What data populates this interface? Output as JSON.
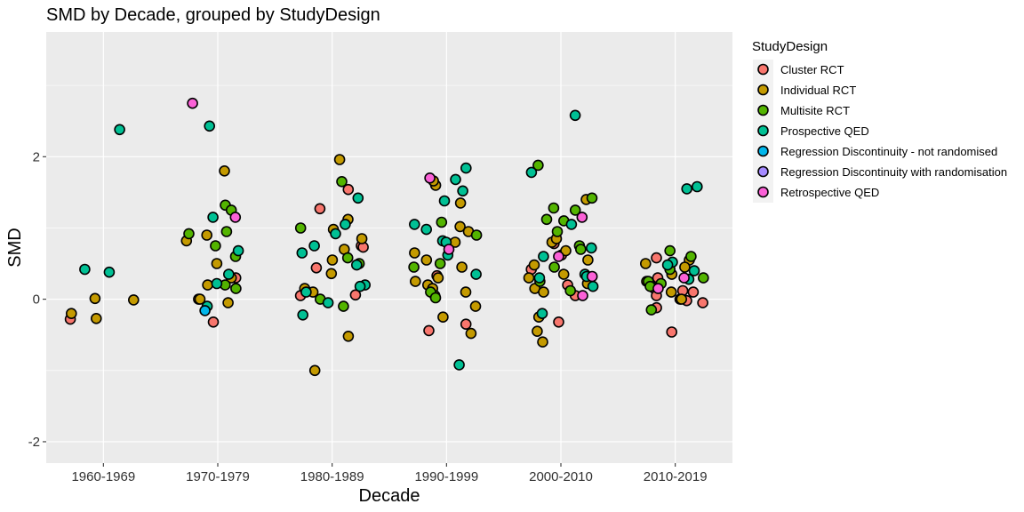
{
  "chart_data": {
    "type": "scatter",
    "title": "SMD by Decade, grouped by StudyDesign",
    "xlabel": "Decade",
    "ylabel": "SMD",
    "categories": [
      "1960-1969",
      "1970-1979",
      "1980-1989",
      "1990-1999",
      "2000-2010",
      "2010-2019"
    ],
    "y_ticks": [
      -2,
      0,
      2
    ],
    "y_tick_labels": [
      "-2",
      "0",
      "2"
    ],
    "ylim": [
      -2.3,
      3.75
    ],
    "grid": true,
    "legend": {
      "title": "StudyDesign",
      "position": "right"
    },
    "series": [
      {
        "name": "Cluster RCT",
        "color": "#F8766D",
        "points": [
          {
            "x": "1960-1969",
            "y": -0.28
          },
          {
            "x": "1970-1979",
            "y": 0.3
          },
          {
            "x": "1970-1979",
            "y": -0.32
          },
          {
            "x": "1970-1979",
            "y": 0.0
          },
          {
            "x": "1980-1989",
            "y": 1.54
          },
          {
            "x": "1980-1989",
            "y": 1.27
          },
          {
            "x": "1980-1989",
            "y": 0.75
          },
          {
            "x": "1980-1989",
            "y": 0.44
          },
          {
            "x": "1980-1989",
            "y": 0.73
          },
          {
            "x": "1980-1989",
            "y": 0.05
          },
          {
            "x": "1980-1989",
            "y": 0.06
          },
          {
            "x": "1990-1999",
            "y": -0.35
          },
          {
            "x": "1990-1999",
            "y": -0.44
          },
          {
            "x": "1990-1999",
            "y": 0.33
          },
          {
            "x": "2000-2010",
            "y": 0.42
          },
          {
            "x": "2000-2010",
            "y": 0.05
          },
          {
            "x": "2000-2010",
            "y": -0.32
          },
          {
            "x": "2000-2010",
            "y": 0.62
          },
          {
            "x": "2000-2010",
            "y": 0.2
          },
          {
            "x": "2000-2010",
            "y": 0.78
          },
          {
            "x": "2010-2019",
            "y": 0.58
          },
          {
            "x": "2010-2019",
            "y": 0.3
          },
          {
            "x": "2010-2019",
            "y": 0.15
          },
          {
            "x": "2010-2019",
            "y": 0.1
          },
          {
            "x": "2010-2019",
            "y": 0.0
          },
          {
            "x": "2010-2019",
            "y": -0.05
          },
          {
            "x": "2010-2019",
            "y": -0.12
          },
          {
            "x": "2010-2019",
            "y": 0.05
          },
          {
            "x": "2010-2019",
            "y": 0.2
          },
          {
            "x": "2010-2019",
            "y": -0.46
          },
          {
            "x": "2010-2019",
            "y": 0.12
          },
          {
            "x": "2010-2019",
            "y": -0.02
          }
        ]
      },
      {
        "name": "Individual RCT",
        "color": "#C49A00",
        "points": [
          {
            "x": "1960-1969",
            "y": -0.2
          },
          {
            "x": "1960-1969",
            "y": -0.27
          },
          {
            "x": "1960-1969",
            "y": -0.01
          },
          {
            "x": "1960-1969",
            "y": 0.01
          },
          {
            "x": "1970-1979",
            "y": 1.8
          },
          {
            "x": "1970-1979",
            "y": 0.82
          },
          {
            "x": "1970-1979",
            "y": 0.9
          },
          {
            "x": "1970-1979",
            "y": 0.5
          },
          {
            "x": "1970-1979",
            "y": 0.3
          },
          {
            "x": "1970-1979",
            "y": 0.2
          },
          {
            "x": "1970-1979",
            "y": 0.0
          },
          {
            "x": "1970-1979",
            "y": -0.05
          },
          {
            "x": "1980-1989",
            "y": 1.96
          },
          {
            "x": "1980-1989",
            "y": 1.12
          },
          {
            "x": "1980-1989",
            "y": 0.98
          },
          {
            "x": "1980-1989",
            "y": 0.85
          },
          {
            "x": "1980-1989",
            "y": 0.7
          },
          {
            "x": "1980-1989",
            "y": 0.55
          },
          {
            "x": "1980-1989",
            "y": 0.36
          },
          {
            "x": "1980-1989",
            "y": 0.15
          },
          {
            "x": "1980-1989",
            "y": 0.1
          },
          {
            "x": "1980-1989",
            "y": -0.52
          },
          {
            "x": "1980-1989",
            "y": -1.0
          },
          {
            "x": "1990-1999",
            "y": 1.6
          },
          {
            "x": "1990-1999",
            "y": 1.66
          },
          {
            "x": "1990-1999",
            "y": 1.35
          },
          {
            "x": "1990-1999",
            "y": 1.02
          },
          {
            "x": "1990-1999",
            "y": 0.95
          },
          {
            "x": "1990-1999",
            "y": 0.8
          },
          {
            "x": "1990-1999",
            "y": 0.65
          },
          {
            "x": "1990-1999",
            "y": 0.55
          },
          {
            "x": "1990-1999",
            "y": 0.45
          },
          {
            "x": "1990-1999",
            "y": 0.3
          },
          {
            "x": "1990-1999",
            "y": 0.25
          },
          {
            "x": "1990-1999",
            "y": 0.2
          },
          {
            "x": "1990-1999",
            "y": 0.15
          },
          {
            "x": "1990-1999",
            "y": 0.1
          },
          {
            "x": "1990-1999",
            "y": 0.05
          },
          {
            "x": "1990-1999",
            "y": -0.1
          },
          {
            "x": "1990-1999",
            "y": -0.25
          },
          {
            "x": "1990-1999",
            "y": -0.48
          },
          {
            "x": "2000-2010",
            "y": 1.4
          },
          {
            "x": "2000-2010",
            "y": 0.8
          },
          {
            "x": "2000-2010",
            "y": 0.85
          },
          {
            "x": "2000-2010",
            "y": 0.68
          },
          {
            "x": "2000-2010",
            "y": 0.55
          },
          {
            "x": "2000-2010",
            "y": 0.48
          },
          {
            "x": "2000-2010",
            "y": 0.35
          },
          {
            "x": "2000-2010",
            "y": 0.3
          },
          {
            "x": "2000-2010",
            "y": 0.22
          },
          {
            "x": "2000-2010",
            "y": 0.15
          },
          {
            "x": "2000-2010",
            "y": 0.1
          },
          {
            "x": "2000-2010",
            "y": -0.25
          },
          {
            "x": "2000-2010",
            "y": -0.45
          },
          {
            "x": "2000-2010",
            "y": -0.6
          },
          {
            "x": "2010-2019",
            "y": 0.55
          },
          {
            "x": "2010-2019",
            "y": 0.5
          },
          {
            "x": "2010-2019",
            "y": 0.45
          },
          {
            "x": "2010-2019",
            "y": 0.35
          },
          {
            "x": "2010-2019",
            "y": 0.25
          },
          {
            "x": "2010-2019",
            "y": 0.1
          },
          {
            "x": "2010-2019",
            "y": 0.0
          }
        ]
      },
      {
        "name": "Multisite RCT",
        "color": "#53B400",
        "points": [
          {
            "x": "1970-1979",
            "y": 1.32
          },
          {
            "x": "1970-1979",
            "y": 1.25
          },
          {
            "x": "1970-1979",
            "y": 0.95
          },
          {
            "x": "1970-1979",
            "y": 0.92
          },
          {
            "x": "1970-1979",
            "y": 0.75
          },
          {
            "x": "1970-1979",
            "y": 0.6
          },
          {
            "x": "1970-1979",
            "y": 0.2
          },
          {
            "x": "1970-1979",
            "y": 0.15
          },
          {
            "x": "1980-1989",
            "y": 1.65
          },
          {
            "x": "1980-1989",
            "y": 1.0
          },
          {
            "x": "1980-1989",
            "y": 0.58
          },
          {
            "x": "1980-1989",
            "y": 0.5
          },
          {
            "x": "1980-1989",
            "y": 0.0
          },
          {
            "x": "1980-1989",
            "y": -0.1
          },
          {
            "x": "1990-1999",
            "y": 1.08
          },
          {
            "x": "1990-1999",
            "y": 0.9
          },
          {
            "x": "1990-1999",
            "y": 0.5
          },
          {
            "x": "1990-1999",
            "y": 0.45
          },
          {
            "x": "1990-1999",
            "y": 0.1
          },
          {
            "x": "1990-1999",
            "y": 0.02
          },
          {
            "x": "2000-2010",
            "y": 1.88
          },
          {
            "x": "2000-2010",
            "y": 1.42
          },
          {
            "x": "2000-2010",
            "y": 1.28
          },
          {
            "x": "2000-2010",
            "y": 1.25
          },
          {
            "x": "2000-2010",
            "y": 1.12
          },
          {
            "x": "2000-2010",
            "y": 1.1
          },
          {
            "x": "2000-2010",
            "y": 0.95
          },
          {
            "x": "2000-2010",
            "y": 0.75
          },
          {
            "x": "2000-2010",
            "y": 0.7
          },
          {
            "x": "2000-2010",
            "y": 0.45
          },
          {
            "x": "2000-2010",
            "y": 0.25
          },
          {
            "x": "2000-2010",
            "y": 0.12
          },
          {
            "x": "2010-2019",
            "y": 0.68
          },
          {
            "x": "2010-2019",
            "y": 0.6
          },
          {
            "x": "2010-2019",
            "y": 0.42
          },
          {
            "x": "2010-2019",
            "y": 0.3
          },
          {
            "x": "2010-2019",
            "y": 0.25
          },
          {
            "x": "2010-2019",
            "y": 0.22
          },
          {
            "x": "2010-2019",
            "y": 0.18
          },
          {
            "x": "2010-2019",
            "y": -0.15
          }
        ]
      },
      {
        "name": "Prospective QED",
        "color": "#00C094",
        "points": [
          {
            "x": "1960-1969",
            "y": 2.38
          },
          {
            "x": "1960-1969",
            "y": 0.38
          },
          {
            "x": "1960-1969",
            "y": 0.42
          },
          {
            "x": "1970-1979",
            "y": 2.43
          },
          {
            "x": "1970-1979",
            "y": 1.15
          },
          {
            "x": "1970-1979",
            "y": 0.68
          },
          {
            "x": "1970-1979",
            "y": 0.35
          },
          {
            "x": "1970-1979",
            "y": 0.22
          },
          {
            "x": "1970-1979",
            "y": -0.1
          },
          {
            "x": "1980-1989",
            "y": 1.42
          },
          {
            "x": "1980-1989",
            "y": 1.05
          },
          {
            "x": "1980-1989",
            "y": 0.92
          },
          {
            "x": "1980-1989",
            "y": 0.75
          },
          {
            "x": "1980-1989",
            "y": 0.65
          },
          {
            "x": "1980-1989",
            "y": 0.48
          },
          {
            "x": "1980-1989",
            "y": 0.2
          },
          {
            "x": "1980-1989",
            "y": 0.18
          },
          {
            "x": "1980-1989",
            "y": 0.1
          },
          {
            "x": "1980-1989",
            "y": -0.05
          },
          {
            "x": "1980-1989",
            "y": -0.22
          },
          {
            "x": "1990-1999",
            "y": 1.84
          },
          {
            "x": "1990-1999",
            "y": 1.68
          },
          {
            "x": "1990-1999",
            "y": 1.52
          },
          {
            "x": "1990-1999",
            "y": 1.38
          },
          {
            "x": "1990-1999",
            "y": 1.05
          },
          {
            "x": "1990-1999",
            "y": 0.98
          },
          {
            "x": "1990-1999",
            "y": 0.82
          },
          {
            "x": "1990-1999",
            "y": 0.8
          },
          {
            "x": "1990-1999",
            "y": 0.62
          },
          {
            "x": "1990-1999",
            "y": 0.35
          },
          {
            "x": "1990-1999",
            "y": -0.92
          },
          {
            "x": "2000-2010",
            "y": 2.58
          },
          {
            "x": "2000-2010",
            "y": 1.78
          },
          {
            "x": "2000-2010",
            "y": 1.05
          },
          {
            "x": "2000-2010",
            "y": 0.72
          },
          {
            "x": "2000-2010",
            "y": 0.6
          },
          {
            "x": "2000-2010",
            "y": 0.35
          },
          {
            "x": "2000-2010",
            "y": 0.32
          },
          {
            "x": "2000-2010",
            "y": 0.3
          },
          {
            "x": "2000-2010",
            "y": 0.18
          },
          {
            "x": "2000-2010",
            "y": -0.2
          },
          {
            "x": "2010-2019",
            "y": 1.58
          },
          {
            "x": "2010-2019",
            "y": 1.55
          },
          {
            "x": "2010-2019",
            "y": 0.52
          },
          {
            "x": "2010-2019",
            "y": 0.48
          },
          {
            "x": "2010-2019",
            "y": 0.4
          },
          {
            "x": "2010-2019",
            "y": 0.28
          }
        ]
      },
      {
        "name": "Regression Discontinuity - not randomised",
        "color": "#00B6EB",
        "points": [
          {
            "x": "1970-1979",
            "y": -0.16
          }
        ]
      },
      {
        "name": "Regression Discontinuity with randomisation",
        "color": "#A58AFF",
        "points": []
      },
      {
        "name": "Retrospective QED",
        "color": "#FB61D7",
        "points": [
          {
            "x": "1970-1979",
            "y": 2.75
          },
          {
            "x": "1970-1979",
            "y": 1.15
          },
          {
            "x": "1990-1999",
            "y": 1.7
          },
          {
            "x": "1990-1999",
            "y": 0.7
          },
          {
            "x": "2000-2010",
            "y": 1.15
          },
          {
            "x": "2000-2010",
            "y": 0.6
          },
          {
            "x": "2000-2010",
            "y": 0.32
          },
          {
            "x": "2000-2010",
            "y": 0.05
          },
          {
            "x": "2010-2019",
            "y": 0.3
          },
          {
            "x": "2010-2019",
            "y": 0.15
          }
        ]
      }
    ]
  }
}
